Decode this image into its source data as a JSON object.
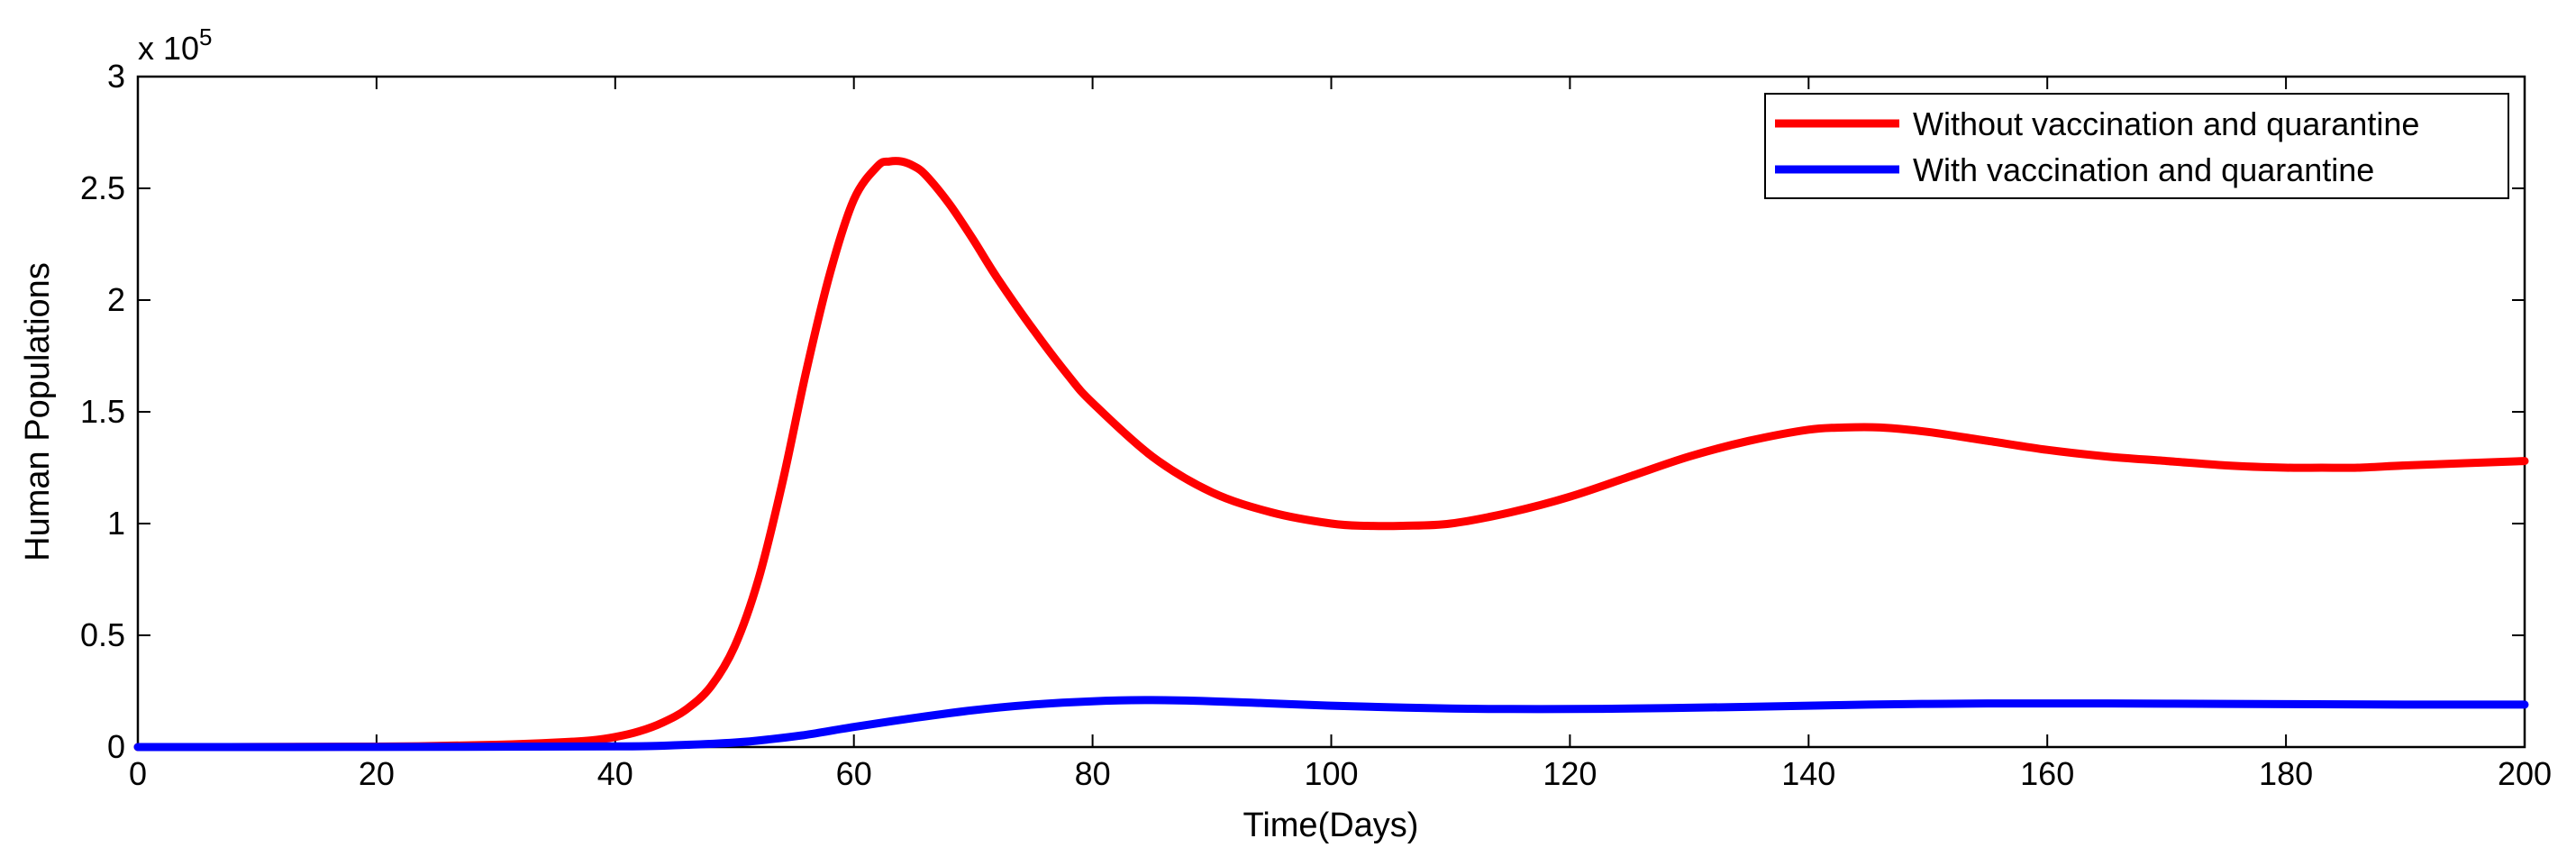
{
  "chart_data": {
    "type": "line",
    "title": "",
    "xlabel": "Time(Days)",
    "ylabel": "Human Populations",
    "y_multiplier_base": "x 10",
    "y_multiplier_exponent": "5",
    "xlim": [
      0,
      200
    ],
    "ylim": [
      0,
      3
    ],
    "xticks": [
      0,
      20,
      40,
      60,
      80,
      100,
      120,
      140,
      160,
      180,
      200
    ],
    "xtick_labels": [
      "0",
      "20",
      "40",
      "60",
      "80",
      "100",
      "120",
      "140",
      "160",
      "180",
      "200"
    ],
    "yticks": [
      0,
      0.5,
      1,
      1.5,
      2,
      2.5,
      3
    ],
    "ytick_labels": [
      "0",
      "0.5",
      "1",
      "1.5",
      "2",
      "2.5",
      "3"
    ],
    "grid": false,
    "legend_position": "top-right",
    "series": [
      {
        "name": "Without vaccination and quarantine",
        "color": "#ff0000",
        "x": [
          0,
          10,
          20,
          25,
          30,
          35,
          38,
          40,
          42,
          44,
          46,
          48,
          50,
          52,
          54,
          56,
          58,
          60,
          62,
          63,
          64,
          65,
          66,
          68,
          70,
          72,
          75,
          78,
          80,
          85,
          90,
          95,
          100,
          103,
          106,
          110,
          115,
          120,
          125,
          130,
          135,
          140,
          143,
          146,
          150,
          155,
          160,
          165,
          170,
          175,
          180,
          183,
          186,
          190,
          195,
          200
        ],
        "y": [
          0,
          0.0005,
          0.002,
          0.005,
          0.01,
          0.02,
          0.03,
          0.045,
          0.07,
          0.11,
          0.17,
          0.27,
          0.45,
          0.75,
          1.18,
          1.68,
          2.12,
          2.45,
          2.6,
          2.62,
          2.62,
          2.6,
          2.56,
          2.43,
          2.27,
          2.1,
          1.87,
          1.66,
          1.54,
          1.3,
          1.14,
          1.05,
          1.0,
          0.99,
          0.99,
          1.0,
          1.05,
          1.12,
          1.21,
          1.3,
          1.37,
          1.42,
          1.43,
          1.43,
          1.41,
          1.37,
          1.33,
          1.3,
          1.28,
          1.26,
          1.25,
          1.25,
          1.25,
          1.26,
          1.27,
          1.28
        ]
      },
      {
        "name": "With vaccination and quarantine",
        "color": "#0000ff",
        "x": [
          0,
          20,
          40,
          45,
          50,
          53,
          56,
          60,
          65,
          70,
          75,
          80,
          85,
          90,
          95,
          100,
          105,
          110,
          115,
          120,
          125,
          130,
          135,
          140,
          145,
          150,
          155,
          160,
          165,
          170,
          175,
          180,
          185,
          190,
          195,
          200
        ],
        "y": [
          0,
          0.0005,
          0.003,
          0.008,
          0.02,
          0.035,
          0.055,
          0.09,
          0.13,
          0.165,
          0.19,
          0.205,
          0.21,
          0.205,
          0.195,
          0.185,
          0.178,
          0.172,
          0.17,
          0.17,
          0.172,
          0.176,
          0.18,
          0.185,
          0.19,
          0.193,
          0.195,
          0.195,
          0.195,
          0.194,
          0.193,
          0.192,
          0.191,
          0.19,
          0.19,
          0.19
        ]
      }
    ]
  }
}
